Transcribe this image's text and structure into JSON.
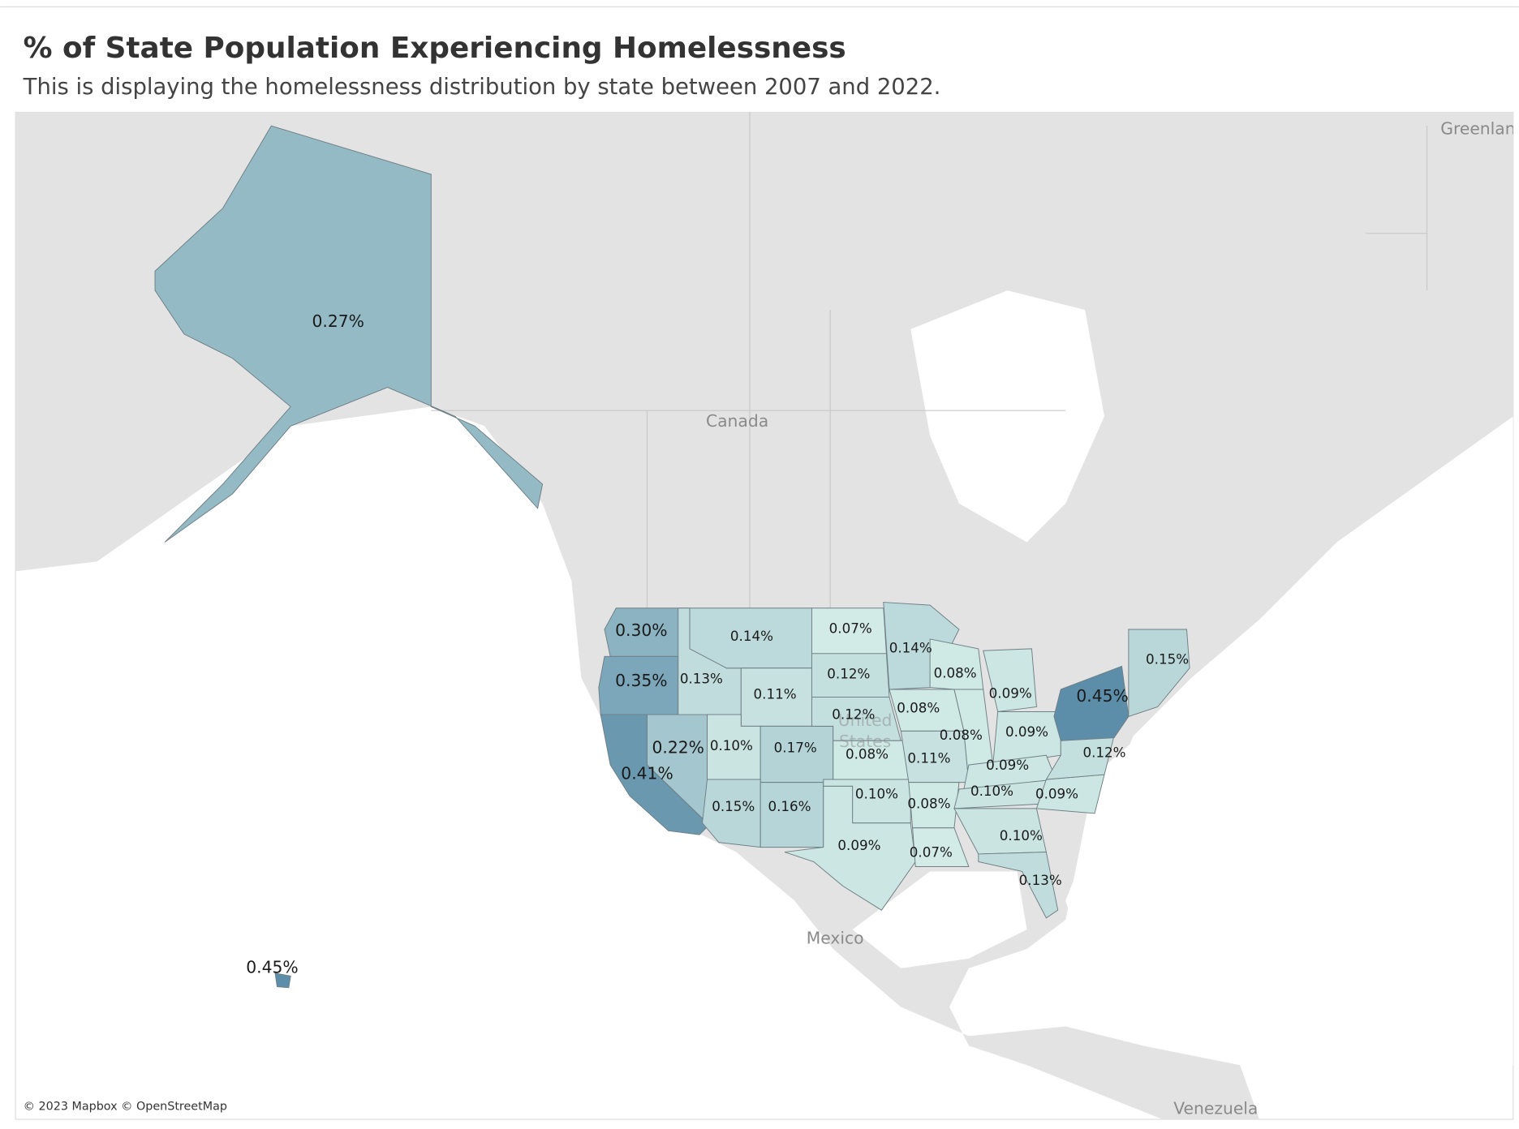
{
  "header": {
    "title": "% of State Population Experiencing Homelessness",
    "subtitle": "This is displaying the homelessness distribution  by state between 2007 and 2022."
  },
  "chart_data": {
    "type": "choropleth",
    "values": [
      0.27,
      0.3,
      0.35,
      0.41,
      0.22,
      0.13,
      0.14,
      0.11,
      0.1,
      0.17,
      0.15,
      0.16,
      0.07,
      0.12,
      0.12,
      0.08,
      0.1,
      0.09,
      0.14,
      0.08,
      0.11,
      0.08,
      0.07,
      0.08,
      0.08,
      0.09,
      0.09,
      0.09,
      0.1,
      0.09,
      0.1,
      0.13,
      0.12,
      0.45,
      0.15,
      0.45
    ],
    "value_labels": [
      "0.27%",
      "0.30%",
      "0.35%",
      "0.41%",
      "0.22%",
      "0.13%",
      "0.14%",
      "0.11%",
      "0.10%",
      "0.17%",
      "0.15%",
      "0.16%",
      "0.07%",
      "0.12%",
      "0.12%",
      "0.08%",
      "0.10%",
      "0.09%",
      "0.14%",
      "0.08%",
      "0.11%",
      "0.08%",
      "0.07%",
      "0.08%",
      "0.08%",
      "0.09%",
      "0.09%",
      "0.09%",
      "0.10%",
      "0.09%",
      "0.10%",
      "0.13%",
      "0.12%",
      "0.45%",
      "0.15%",
      "0.45%"
    ],
    "color_range": [
      "#d2ebe6",
      "#5d8ea9"
    ]
  },
  "map_labels": [
    "Canada",
    "Mexico",
    "Greenland",
    "Venezuela",
    "United",
    "States"
  ],
  "attribution": "© 2023 Mapbox © OpenStreetMap"
}
